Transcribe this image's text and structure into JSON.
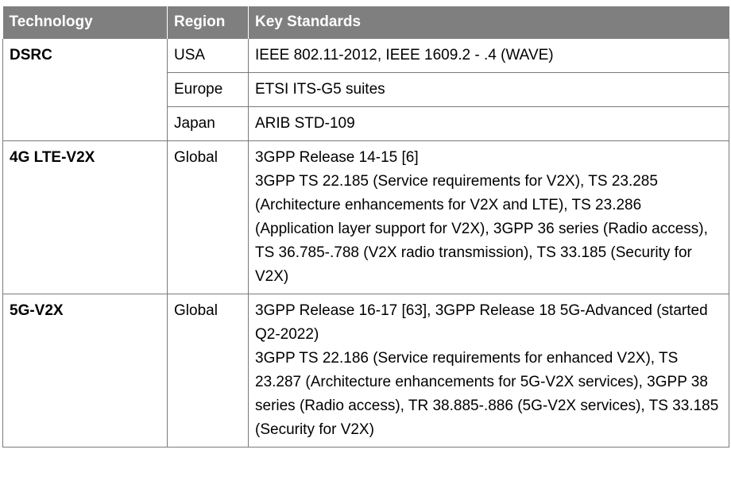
{
  "table": {
    "headers": [
      "Technology",
      "Region",
      "Key Standards"
    ],
    "rows": [
      {
        "technology": "DSRC",
        "region": "USA",
        "standards": [
          "IEEE 802.11-2012, IEEE 1609.2 - .4 (WAVE)"
        ]
      },
      {
        "region": "Europe",
        "standards": [
          "ETSI ITS-G5 suites"
        ]
      },
      {
        "region": "Japan",
        "standards": [
          "ARIB STD-109"
        ]
      },
      {
        "technology": "4G LTE-V2X",
        "region": "Global",
        "standards": [
          "3GPP Release 14-15 [6]",
          "3GPP TS 22.185 (Service requirements for V2X), TS 23.285 (Architecture enhancements for V2X and LTE), TS 23.286 (Application layer support for V2X), 3GPP 36 series (Radio access), TS 36.785-.788 (V2X radio transmission), TS 33.185 (Security for V2X)"
        ]
      },
      {
        "technology": "5G-V2X",
        "region": "Global",
        "standards": [
          "3GPP Release 16-17 [63], 3GPP Release 18 5G-Advanced (started Q2-2022)",
          "3GPP TS 22.186 (Service requirements for enhanced V2X), TS 23.287 (Architecture enhancements for 5G-V2X services), 3GPP 38 series (Radio access), TR 38.885-.886 (5G-V2X services), TS 33.185 (Security for V2X)"
        ]
      }
    ]
  }
}
